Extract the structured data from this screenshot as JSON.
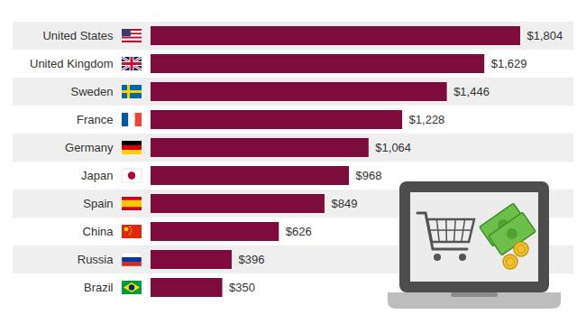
{
  "chart_data": {
    "type": "bar",
    "orientation": "horizontal",
    "categories": [
      "United States",
      "United Kingdom",
      "Sweden",
      "France",
      "Germany",
      "Japan",
      "Spain",
      "China",
      "Russia",
      "Brazil"
    ],
    "values": [
      1804,
      1629,
      1446,
      1228,
      1064,
      968,
      849,
      626,
      396,
      350
    ],
    "value_labels": [
      "$1,804",
      "$1,629",
      "$1,446",
      "$1,228",
      "$1,064",
      "$968",
      "$849",
      "$626",
      "$396",
      "$350"
    ],
    "color": "#7d0c3c",
    "data_labels": true,
    "tick_labels": "y",
    "grid": false
  }
}
